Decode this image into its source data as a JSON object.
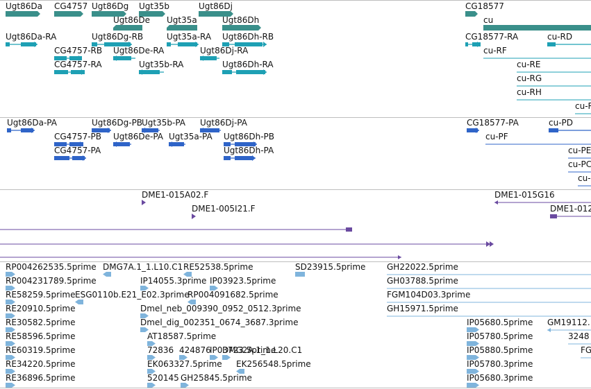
{
  "colors": {
    "gene": "#3a8f8a",
    "mrna": "#1ea0b4",
    "protein": "#2f64c8",
    "clone": "#6a4aa0",
    "est": "#7fb4dc",
    "separator": "#bdbdbd"
  },
  "tracks": {
    "genes": [
      {
        "label": "Ugt86Da"
      },
      {
        "label": "CG4757"
      },
      {
        "label": "Ugt86Dg"
      },
      {
        "label": "Ugt35b"
      },
      {
        "label": "Ugt86Dj"
      },
      {
        "label": "Ugt86De"
      },
      {
        "label": "Ugt35a"
      },
      {
        "label": "Ugt86Dh"
      },
      {
        "label": "CG18577"
      },
      {
        "label": "cu"
      }
    ],
    "transcripts": [
      {
        "label": "Ugt86Da-RA"
      },
      {
        "label": "Ugt86Dg-RB"
      },
      {
        "label": "Ugt35a-RA"
      },
      {
        "label": "Ugt86Dh-RB"
      },
      {
        "label": "CG4757-RB"
      },
      {
        "label": "Ugt86De-RA"
      },
      {
        "label": "Ugt86Dj-RA"
      },
      {
        "label": "CG4757-RA"
      },
      {
        "label": "Ugt35b-RA"
      },
      {
        "label": "Ugt86Dh-RA"
      },
      {
        "label": "CG18577-RA"
      },
      {
        "label": "cu-RD"
      },
      {
        "label": "cu-RF"
      },
      {
        "label": "cu-RE"
      },
      {
        "label": "cu-RG"
      },
      {
        "label": "cu-RH"
      },
      {
        "label": "cu-RI"
      }
    ],
    "proteins": [
      {
        "label": "Ugt86Da-PA"
      },
      {
        "label": "Ugt86Dg-PB"
      },
      {
        "label": "Ugt35b-PA"
      },
      {
        "label": "Ugt86Dj-PA"
      },
      {
        "label": "CG4757-PB"
      },
      {
        "label": "Ugt86De-PA"
      },
      {
        "label": "Ugt35a-PA"
      },
      {
        "label": "Ugt86Dh-PB"
      },
      {
        "label": "CG4757-PA"
      },
      {
        "label": "Ugt86Dh-PA"
      },
      {
        "label": "CG18577-PA"
      },
      {
        "label": "cu-PD"
      },
      {
        "label": "cu-PF"
      },
      {
        "label": "cu-PE"
      },
      {
        "label": "cu-PC"
      },
      {
        "label": "cu-PG"
      }
    ],
    "clones": [
      {
        "label": "DME1-015A02.F"
      },
      {
        "label": "DME1-015G16"
      },
      {
        "label": "DME1-005I21.F"
      },
      {
        "label": "DME1-012"
      }
    ],
    "ests": [
      {
        "label": "RP004262535.5prime"
      },
      {
        "label": "DMG7A.1_1.L10.C1"
      },
      {
        "label": "RE52538.5prime"
      },
      {
        "label": "SD23915.5prime"
      },
      {
        "label": "GH22022.5prime"
      },
      {
        "label": "RP004231789.5prime"
      },
      {
        "label": "IP14055.3prime"
      },
      {
        "label": "IP03923.5prime"
      },
      {
        "label": "GH03788.5prime"
      },
      {
        "label": "RE58259.5prime"
      },
      {
        "label": "ESG0110b.E21_E02.3prime"
      },
      {
        "label": "RP004091682.5prime"
      },
      {
        "label": "FGM104D03.3prime"
      },
      {
        "label": "RE20910.5prime"
      },
      {
        "label": "Dmel_neb_009390_0952_0512.3prime"
      },
      {
        "label": "GH15971.5prime"
      },
      {
        "label": "RE30582.5prime"
      },
      {
        "label": "Dmel_dig_002351_0674_3687.3prime"
      },
      {
        "label": "IP05680.5prime"
      },
      {
        "label": "GM19112."
      },
      {
        "label": "RE58596.5prime"
      },
      {
        "label": "AT18587.5prime"
      },
      {
        "label": "IP05780.5prime"
      },
      {
        "label": "3248"
      },
      {
        "label": "RE60319.5prime"
      },
      {
        "label": "72836"
      },
      {
        "label": "424876"
      },
      {
        "label": "DMG2A.1_1.L20.C1"
      },
      {
        "label": "IP03723.5prime"
      },
      {
        "label": "IP05880.5prime"
      },
      {
        "label": "FG"
      },
      {
        "label": "RE34220.5prime"
      },
      {
        "label": "EK063327.5prime"
      },
      {
        "label": "EK256548.5prime"
      },
      {
        "label": "IP05780.3prime"
      },
      {
        "label": "RE36896.5prime"
      },
      {
        "label": "520145"
      },
      {
        "label": "GH25845.5prime"
      },
      {
        "label": "IP05680.3prime"
      }
    ]
  }
}
